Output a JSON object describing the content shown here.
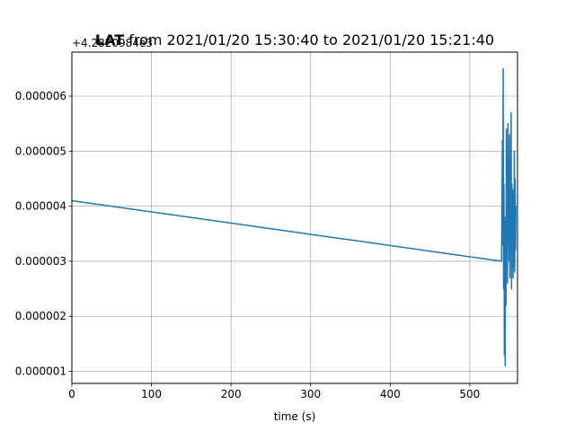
{
  "chart_data": {
    "type": "line",
    "title_bold": "LAT",
    "title_rest": " from 2021/01/20 15:30:40 to 2021/01/20 15:21:40",
    "offset_label": "+4.2820984e3",
    "xlabel": "time (s)",
    "ylabel": "",
    "xlim": [
      0,
      560
    ],
    "ylim": [
      7.8e-07,
      6.8e-06
    ],
    "xticks": [
      0,
      100,
      200,
      300,
      400,
      500
    ],
    "xtick_labels": [
      "0",
      "100",
      "200",
      "300",
      "400",
      "500"
    ],
    "yticks": [
      1e-06,
      2e-06,
      3e-06,
      4e-06,
      5e-06,
      6e-06
    ],
    "ytick_labels": [
      "0.000001",
      "0.000002",
      "0.000003",
      "0.000004",
      "0.000005",
      "0.000006"
    ],
    "grid": true,
    "series": [
      {
        "color": "#1f77b4",
        "x": [
          0,
          540,
          541,
          541.5,
          542,
          542.5,
          543,
          543.5,
          544,
          544.5,
          545,
          545.5,
          546,
          546.5,
          547,
          547.5,
          548,
          548.5,
          549,
          549.5,
          550,
          550.5,
          551,
          551.5,
          552,
          552.5,
          553,
          553.5,
          554,
          554.5,
          555,
          555.5,
          556,
          556.5,
          557,
          557.5,
          558
        ],
        "y": [
          4.1e-06,
          3e-06,
          5.2e-06,
          3.3e-06,
          6.5e-06,
          2.5e-06,
          4.4e-06,
          1.3e-06,
          3.8e-06,
          1.1e-06,
          3.4e-06,
          2.2e-06,
          5.4e-06,
          3.1e-06,
          4.5e-06,
          2.6e-06,
          5.5e-06,
          3.3e-06,
          4.7e-06,
          3e-06,
          5.3e-06,
          2.7e-06,
          4.8e-06,
          3.2e-06,
          5.7e-06,
          2.5e-06,
          4.4e-06,
          2.9e-06,
          4.3e-06,
          2.7e-06,
          4.1e-06,
          2.9e-06,
          5e-06,
          2.8e-06,
          4.5e-06,
          3.2e-06,
          4e-06
        ]
      }
    ]
  }
}
